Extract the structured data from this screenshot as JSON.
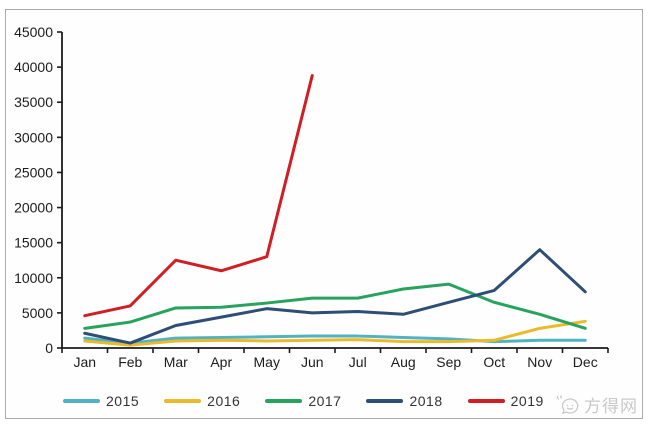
{
  "watermark": {
    "text": "方得网",
    "icon": "chat-smiley-icon"
  },
  "colors": {
    "axis": "#1c1c1c",
    "tick_label": "#1c1c1c",
    "frame_border": "#ababab",
    "watermark": "#c9c9c9",
    "background": "#ffffff"
  },
  "chart_data": {
    "type": "line",
    "title": "",
    "xlabel": "",
    "ylabel": "",
    "categories": [
      "Jan",
      "Feb",
      "Mar",
      "Apr",
      "May",
      "Jun",
      "Jul",
      "Aug",
      "Sep",
      "Oct",
      "Nov",
      "Dec"
    ],
    "ylim": [
      0,
      45000
    ],
    "ytick_step": 5000,
    "yticks": [
      0,
      5000,
      10000,
      15000,
      20000,
      25000,
      30000,
      35000,
      40000,
      45000
    ],
    "grid": false,
    "legend_position": "bottom",
    "series": [
      {
        "name": "2015",
        "color": "#4FB3C5",
        "values": [
          1400,
          700,
          1400,
          1500,
          1600,
          1700,
          1700,
          1500,
          1300,
          900,
          1100,
          1100
        ]
      },
      {
        "name": "2016",
        "color": "#EBBA2B",
        "values": [
          1000,
          400,
          1000,
          1100,
          1000,
          1100,
          1200,
          900,
          900,
          1100,
          2800,
          3800
        ]
      },
      {
        "name": "2017",
        "color": "#27A35D",
        "values": [
          2800,
          3700,
          5700,
          5800,
          6400,
          7100,
          7100,
          8400,
          9100,
          6500,
          4800,
          2800
        ]
      },
      {
        "name": "2018",
        "color": "#2E4D77",
        "values": [
          2100,
          700,
          3200,
          4400,
          5600,
          5000,
          5200,
          4800,
          6500,
          8200,
          14000,
          8000
        ]
      },
      {
        "name": "2019",
        "color": "#D01E25",
        "values": [
          4600,
          6000,
          12500,
          11000,
          13000,
          38800
        ]
      }
    ]
  }
}
